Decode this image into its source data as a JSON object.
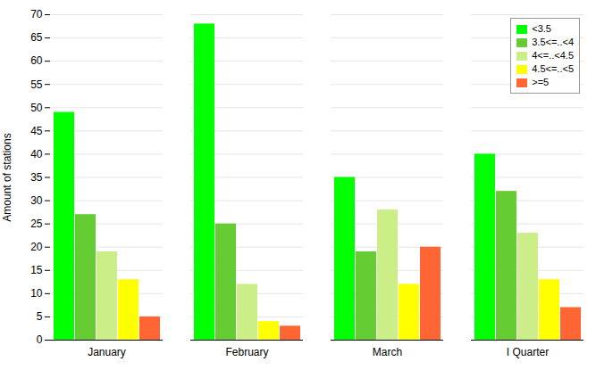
{
  "chart_data": {
    "type": "bar",
    "categories": [
      "January",
      "February",
      "March",
      "I Quarter"
    ],
    "series": [
      {
        "name": "<3.5",
        "color": "#00FF00",
        "values": [
          49,
          68,
          35,
          40
        ]
      },
      {
        "name": "3.5<=..<4",
        "color": "#66CC33",
        "values": [
          27,
          25,
          19,
          32
        ]
      },
      {
        "name": "4<=..<4.5",
        "color": "#CCEE88",
        "values": [
          19,
          12,
          28,
          23
        ]
      },
      {
        "name": "4.5<=..<5",
        "color": "#FFFF00",
        "values": [
          13,
          4,
          12,
          13
        ]
      },
      {
        "name": ">=5",
        "color": "#FF6633",
        "values": [
          5,
          3,
          20,
          7
        ]
      }
    ],
    "ylabel": "Amount of stations",
    "ylim": [
      0,
      70
    ],
    "yticks": [
      0,
      5,
      10,
      15,
      20,
      25,
      30,
      35,
      40,
      45,
      50,
      55,
      60,
      65,
      70
    ],
    "grid": true,
    "legend": "upper right"
  }
}
